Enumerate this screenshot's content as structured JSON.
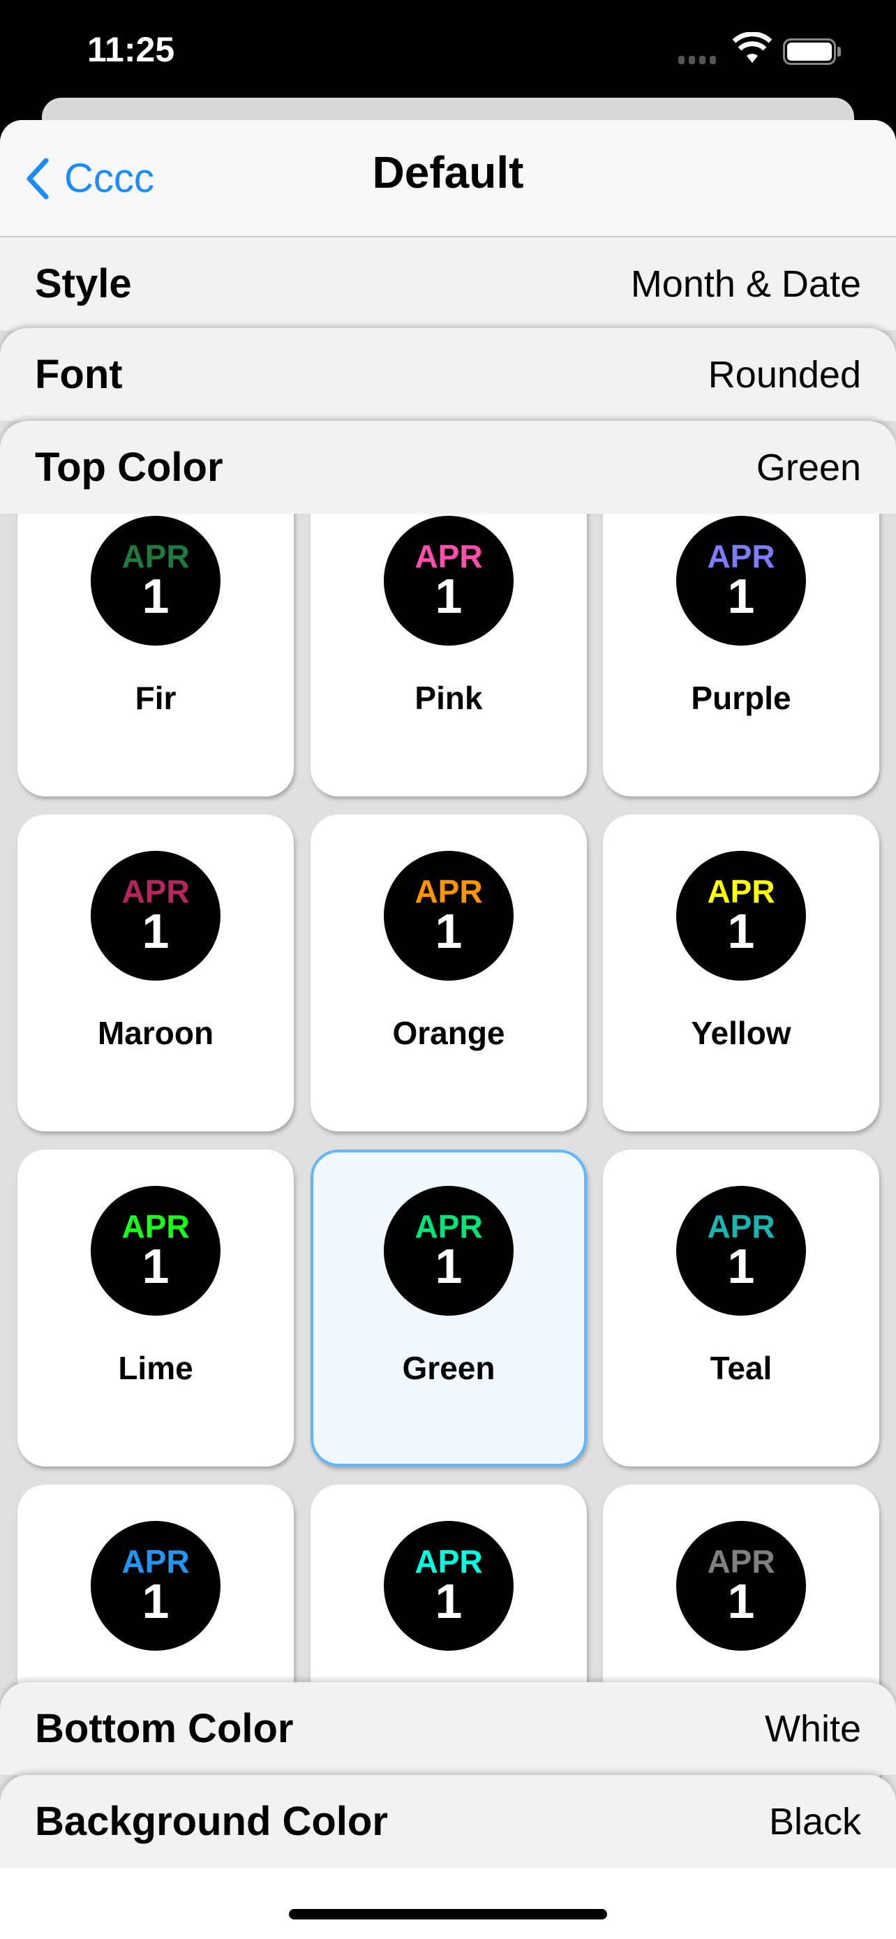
{
  "status_bar": {
    "time": "11:25"
  },
  "nav": {
    "back_label": "Cccc",
    "title": "Default"
  },
  "settings": [
    {
      "label": "Style",
      "value": "Month & Date"
    },
    {
      "label": "Font",
      "value": "Rounded"
    },
    {
      "label": "Top Color",
      "value": "Green"
    }
  ],
  "bottom_settings": [
    {
      "label": "Bottom Color",
      "value": "White"
    },
    {
      "label": "Background Color",
      "value": "Black"
    }
  ],
  "preview": {
    "month": "APR",
    "day": "1"
  },
  "selected_color": "Green",
  "colors": [
    {
      "name": "Fir",
      "hex": "#1f7a3c"
    },
    {
      "name": "Pink",
      "hex": "#ff4fae"
    },
    {
      "name": "Purple",
      "hex": "#7d7dfa"
    },
    {
      "name": "Maroon",
      "hex": "#b3265e"
    },
    {
      "name": "Orange",
      "hex": "#ff9500"
    },
    {
      "name": "Yellow",
      "hex": "#ffff00"
    },
    {
      "name": "Lime",
      "hex": "#19ff19"
    },
    {
      "name": "Green",
      "hex": "#00e676"
    },
    {
      "name": "Teal",
      "hex": "#1ab5b0"
    },
    {
      "name": "",
      "hex": "#2196f3"
    },
    {
      "name": "",
      "hex": "#00ffe0"
    },
    {
      "name": "",
      "hex": "#808080"
    }
  ],
  "accent": "#1a8cff"
}
